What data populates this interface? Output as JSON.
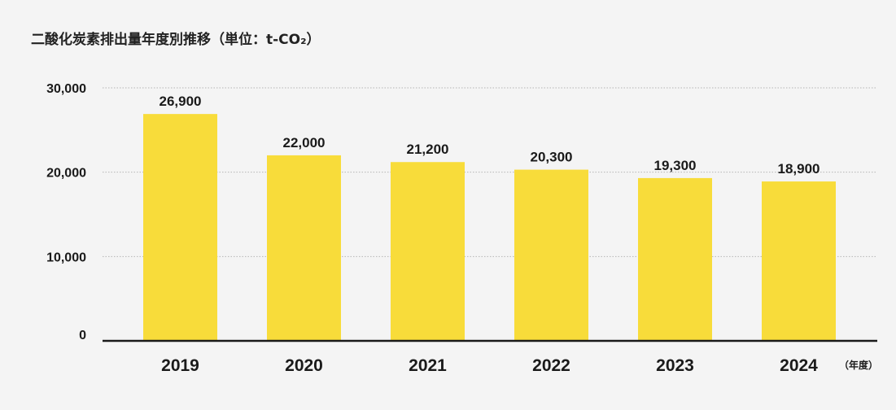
{
  "chart_data": {
    "type": "bar",
    "title": "二酸化炭素排出量年度別推移（単位：t-CO₂）",
    "categories": [
      "2019",
      "2020",
      "2021",
      "2022",
      "2023",
      "2024"
    ],
    "values": [
      26900,
      22000,
      21200,
      20300,
      19300,
      18900
    ],
    "value_labels": [
      "26,900",
      "22,000",
      "21,200",
      "20,300",
      "19,300",
      "18,900"
    ],
    "y_ticks": [
      0,
      10000,
      20000,
      30000
    ],
    "y_tick_labels": [
      "0",
      "10,000",
      "20,000",
      "30,000"
    ],
    "ylim": [
      0,
      30000
    ],
    "x_unit_label": "（年度）",
    "grid": true,
    "bar_color": "#f8dc3a",
    "grid_color": "#b5b5b5",
    "axis_color": "#1a1a1a",
    "text_color": "#1a1a1a"
  }
}
